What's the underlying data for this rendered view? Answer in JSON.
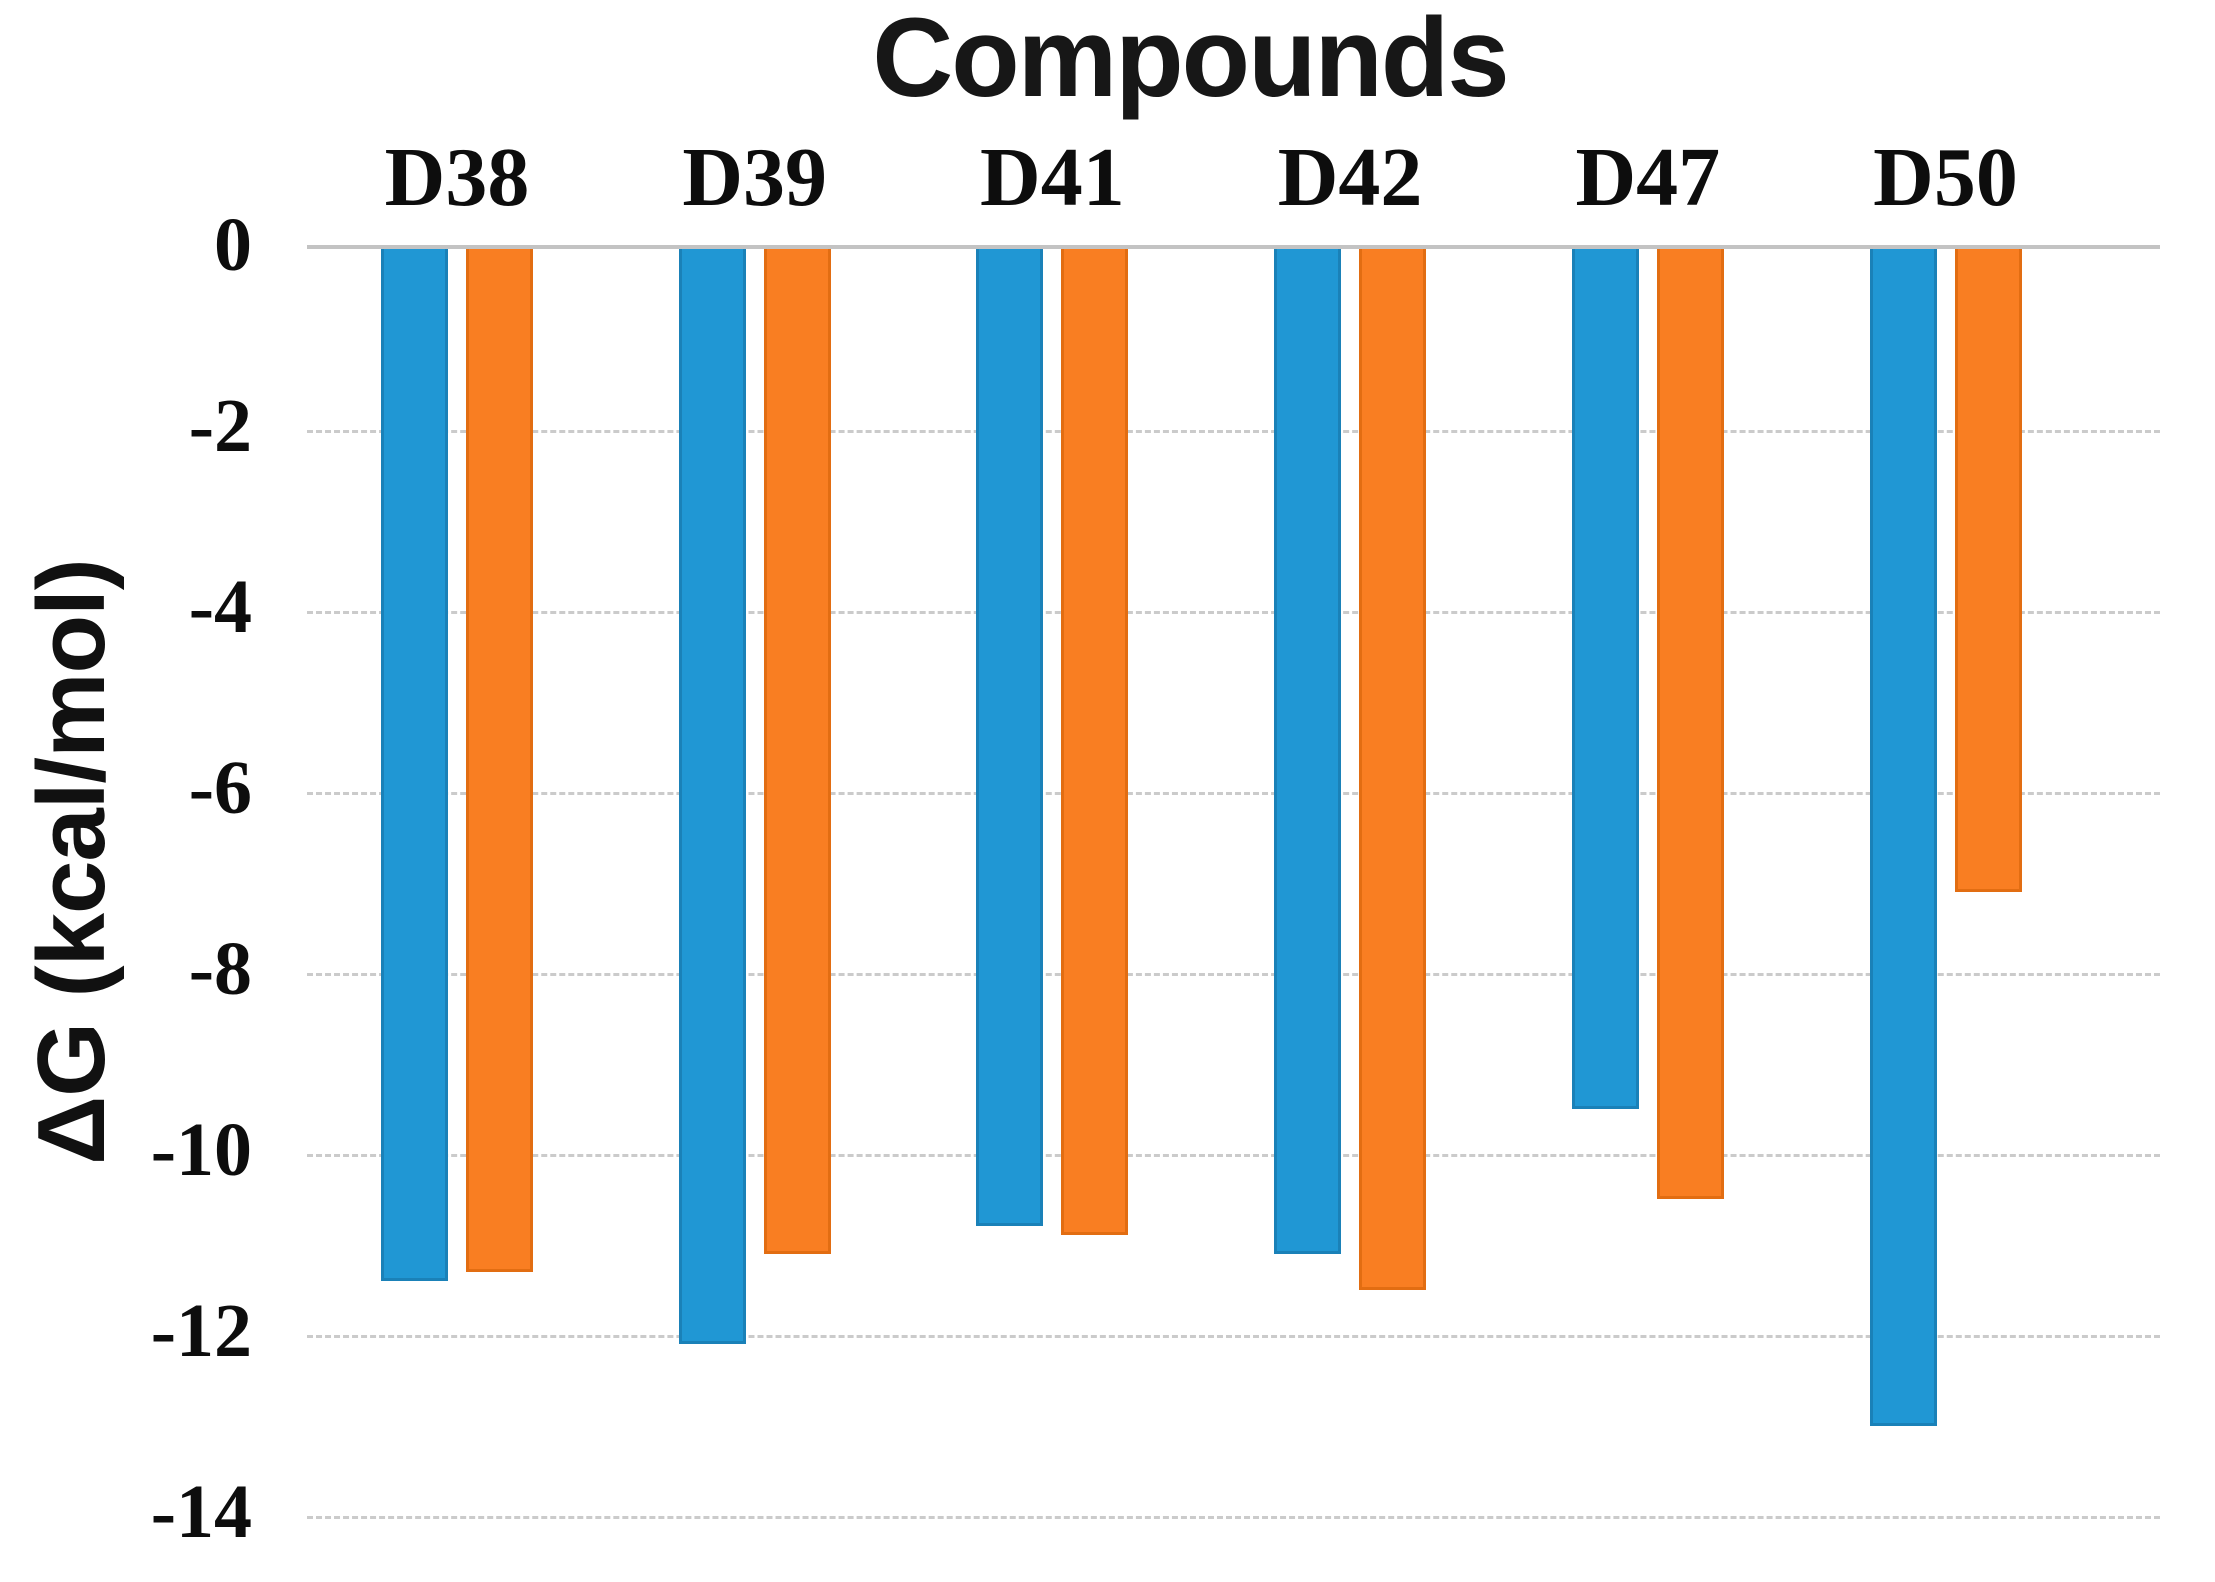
{
  "figure": {
    "title": "Compounds",
    "y_axis_label": "ΔG (kcal/mol)"
  },
  "chart_data": {
    "type": "bar",
    "title": "Compounds",
    "xlabel": "Compounds",
    "ylabel": "ΔG (kcal/mol)",
    "categories": [
      "D38",
      "D39",
      "D41",
      "D42",
      "D47",
      "D50"
    ],
    "series": [
      {
        "name": "blue",
        "color": "#2097d4",
        "edge_color": "#1a81b8",
        "values": [
          -11.4,
          -12.1,
          -10.8,
          -11.1,
          -9.5,
          -13.0
        ]
      },
      {
        "name": "orange",
        "color": "#f97e22",
        "edge_color": "#e26d12",
        "values": [
          -11.3,
          -11.1,
          -10.9,
          -11.5,
          -10.5,
          -7.1
        ]
      }
    ],
    "ylim": [
      -14,
      0
    ],
    "yticks": [
      0,
      -2,
      -4,
      -6,
      -8,
      -10,
      -12,
      -14
    ],
    "ytick_labels": [
      "0",
      "-2",
      "-4",
      "-6",
      "-8",
      "-10",
      "-12",
      "-14"
    ],
    "grid": true,
    "gridline_color": "#cbcbcb",
    "zero_line_color": "#c3c3c3",
    "legend": false,
    "background_color": "#ffffff"
  }
}
